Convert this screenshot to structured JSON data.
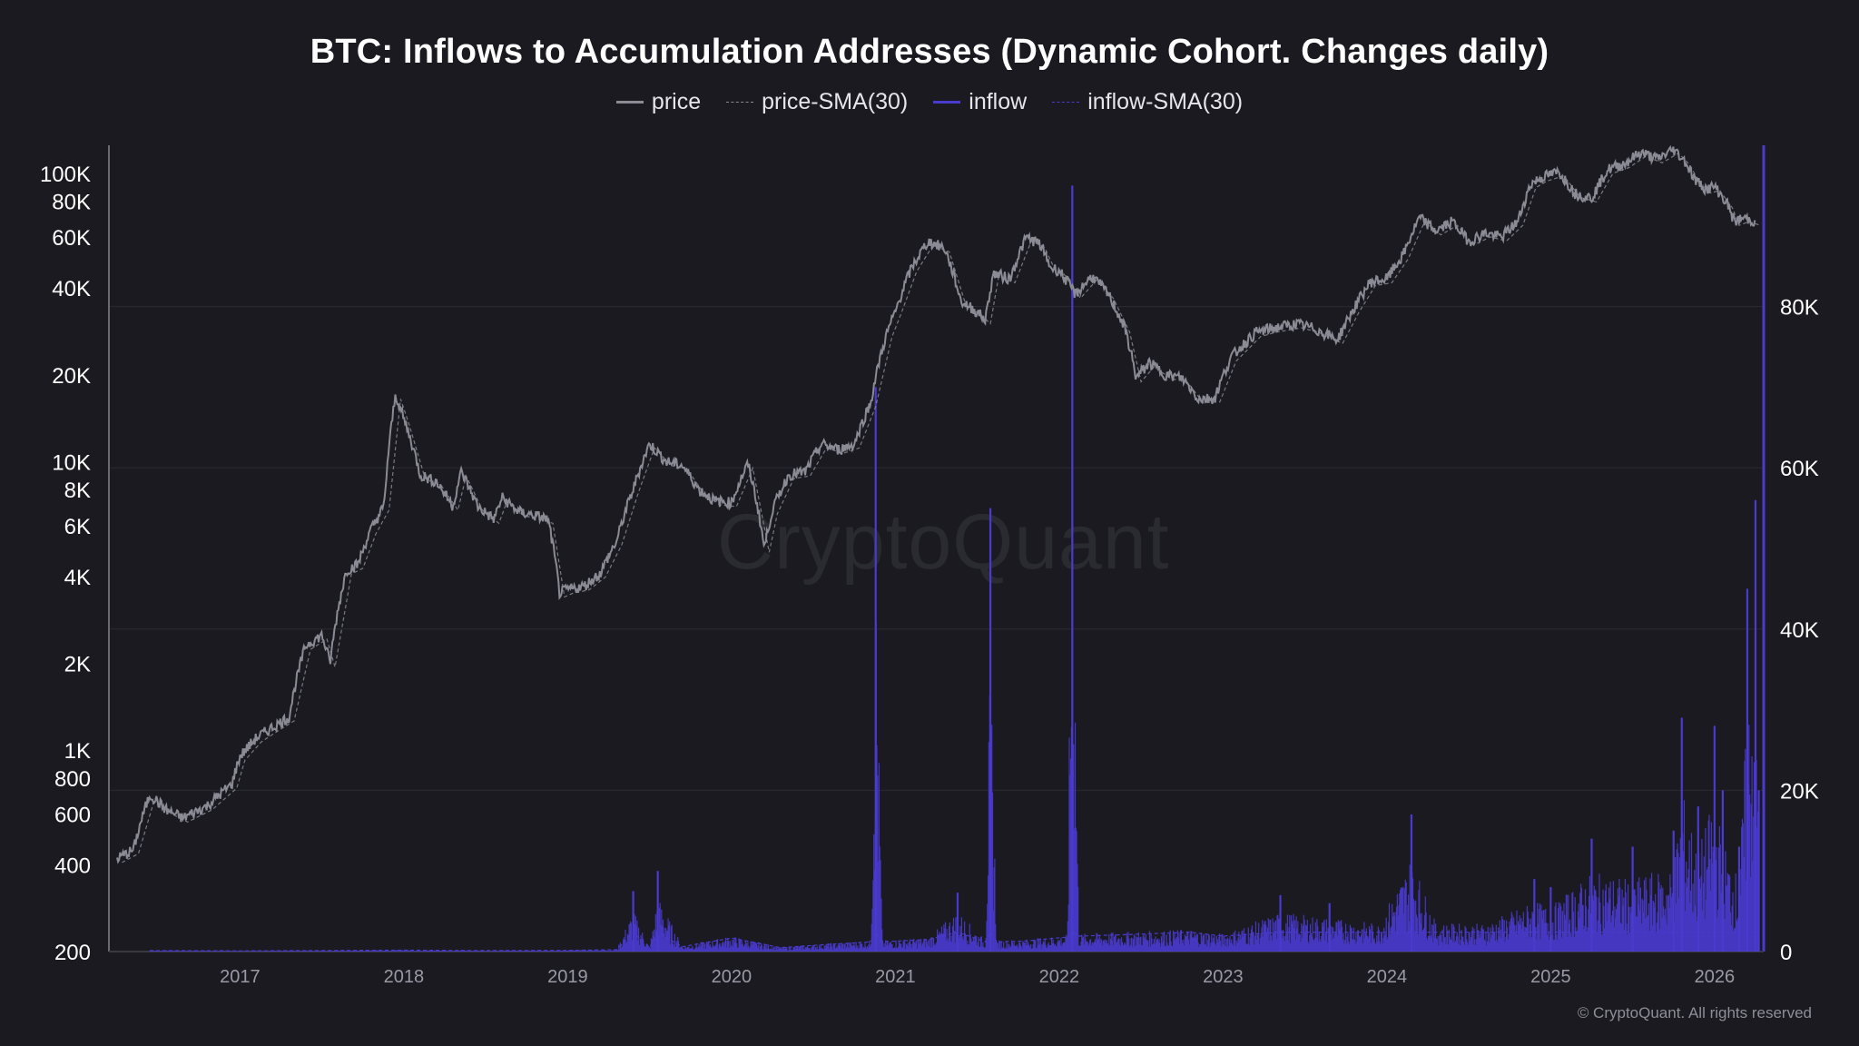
{
  "title": "BTC: Inflows to Accumulation Addresses (Dynamic Cohort. Changes daily)",
  "legend": [
    {
      "label": "price",
      "color": "#8b8b96",
      "dash": false
    },
    {
      "label": "price-SMA(30)",
      "color": "#8b8b96",
      "dash": true
    },
    {
      "label": "inflow",
      "color": "#4a3bd0",
      "dash": false
    },
    {
      "label": "inflow-SMA(30)",
      "color": "#4a3bd0",
      "dash": true
    }
  ],
  "watermark": "CryptoQuant",
  "copyright": "© CryptoQuant. All rights reserved",
  "colors": {
    "background": "#1a1a20",
    "price": "#8b8b96",
    "inflow": "#4a3bd0",
    "grid": "#2b2b33"
  },
  "chart_data": {
    "type": "line",
    "x_ticks": [
      "2017",
      "2018",
      "2019",
      "2020",
      "2021",
      "2022",
      "2023",
      "2024",
      "2025",
      "2026"
    ],
    "x_range": [
      2016.2,
      2026.3
    ],
    "y_left": {
      "scale": "log",
      "range": [
        200,
        125000
      ],
      "ticks": [
        {
          "label": "100K",
          "value": 100000
        },
        {
          "label": "80K",
          "value": 80000
        },
        {
          "label": "60K",
          "value": 60000
        },
        {
          "label": "40K",
          "value": 40000
        },
        {
          "label": "20K",
          "value": 20000
        },
        {
          "label": "10K",
          "value": 10000
        },
        {
          "label": "8K",
          "value": 8000
        },
        {
          "label": "6K",
          "value": 6000
        },
        {
          "label": "4K",
          "value": 4000
        },
        {
          "label": "2K",
          "value": 2000
        },
        {
          "label": "1K",
          "value": 1000
        },
        {
          "label": "800",
          "value": 800
        },
        {
          "label": "600",
          "value": 600
        },
        {
          "label": "400",
          "value": 400
        },
        {
          "label": "200",
          "value": 200
        }
      ]
    },
    "y_right": {
      "scale": "linear",
      "range": [
        0,
        100000
      ],
      "ticks": [
        {
          "label": "80K",
          "value": 80000
        },
        {
          "label": "60K",
          "value": 60000
        },
        {
          "label": "40K",
          "value": 40000
        },
        {
          "label": "20K",
          "value": 20000
        },
        {
          "label": "0",
          "value": 0
        }
      ]
    },
    "grid": true,
    "legend_position": "top-center",
    "series": [
      {
        "name": "price",
        "axis": "left",
        "points": [
          [
            2016.25,
            420
          ],
          [
            2016.35,
            450
          ],
          [
            2016.45,
            700
          ],
          [
            2016.55,
            620
          ],
          [
            2016.65,
            580
          ],
          [
            2016.8,
            640
          ],
          [
            2016.95,
            760
          ],
          [
            2017.0,
            950
          ],
          [
            2017.1,
            1100
          ],
          [
            2017.2,
            1200
          ],
          [
            2017.3,
            1300
          ],
          [
            2017.4,
            2300
          ],
          [
            2017.5,
            2500
          ],
          [
            2017.55,
            2000
          ],
          [
            2017.65,
            4200
          ],
          [
            2017.72,
            4400
          ],
          [
            2017.8,
            5800
          ],
          [
            2017.88,
            7000
          ],
          [
            2017.95,
            17000
          ],
          [
            2018.0,
            14000
          ],
          [
            2018.1,
            9000
          ],
          [
            2018.2,
            8500
          ],
          [
            2018.3,
            7000
          ],
          [
            2018.35,
            9200
          ],
          [
            2018.45,
            7000
          ],
          [
            2018.55,
            6300
          ],
          [
            2018.6,
            7500
          ],
          [
            2018.7,
            6700
          ],
          [
            2018.8,
            6500
          ],
          [
            2018.88,
            6300
          ],
          [
            2018.95,
            3500
          ],
          [
            2019.0,
            3600
          ],
          [
            2019.1,
            3700
          ],
          [
            2019.2,
            4100
          ],
          [
            2019.3,
            5300
          ],
          [
            2019.4,
            8000
          ],
          [
            2019.5,
            11500
          ],
          [
            2019.6,
            10000
          ],
          [
            2019.7,
            9700
          ],
          [
            2019.8,
            8000
          ],
          [
            2019.9,
            7300
          ],
          [
            2020.0,
            7200
          ],
          [
            2020.1,
            9800
          ],
          [
            2020.2,
            5000
          ],
          [
            2020.25,
            6800
          ],
          [
            2020.35,
            9000
          ],
          [
            2020.45,
            9200
          ],
          [
            2020.55,
            11500
          ],
          [
            2020.65,
            11000
          ],
          [
            2020.75,
            11500
          ],
          [
            2020.85,
            16000
          ],
          [
            2020.95,
            28000
          ],
          [
            2021.0,
            33000
          ],
          [
            2021.1,
            47000
          ],
          [
            2021.2,
            58000
          ],
          [
            2021.3,
            55000
          ],
          [
            2021.4,
            36000
          ],
          [
            2021.5,
            33000
          ],
          [
            2021.55,
            31000
          ],
          [
            2021.6,
            45000
          ],
          [
            2021.7,
            43000
          ],
          [
            2021.8,
            60000
          ],
          [
            2021.88,
            57000
          ],
          [
            2021.95,
            47000
          ],
          [
            2022.0,
            46000
          ],
          [
            2022.1,
            38000
          ],
          [
            2022.2,
            44000
          ],
          [
            2022.3,
            38000
          ],
          [
            2022.4,
            29000
          ],
          [
            2022.47,
            19500
          ],
          [
            2022.55,
            22000
          ],
          [
            2022.65,
            20000
          ],
          [
            2022.75,
            19500
          ],
          [
            2022.85,
            16500
          ],
          [
            2022.95,
            16600
          ],
          [
            2023.05,
            23000
          ],
          [
            2023.2,
            28000
          ],
          [
            2023.3,
            29000
          ],
          [
            2023.45,
            30000
          ],
          [
            2023.55,
            29000
          ],
          [
            2023.7,
            26500
          ],
          [
            2023.8,
            34000
          ],
          [
            2023.9,
            42000
          ],
          [
            2024.0,
            43000
          ],
          [
            2024.1,
            52000
          ],
          [
            2024.2,
            70000
          ],
          [
            2024.3,
            63000
          ],
          [
            2024.4,
            68000
          ],
          [
            2024.5,
            58000
          ],
          [
            2024.6,
            62000
          ],
          [
            2024.7,
            60000
          ],
          [
            2024.8,
            68000
          ],
          [
            2024.88,
            92000
          ],
          [
            2024.95,
            97000
          ],
          [
            2025.05,
            101000
          ],
          [
            2025.15,
            85000
          ],
          [
            2025.25,
            82000
          ],
          [
            2025.35,
            103000
          ],
          [
            2025.45,
            108000
          ],
          [
            2025.55,
            118000
          ],
          [
            2025.65,
            112000
          ],
          [
            2025.75,
            121000
          ],
          [
            2025.82,
            110000
          ],
          [
            2025.88,
            95000
          ],
          [
            2025.95,
            88000
          ],
          [
            2026.0,
            90000
          ],
          [
            2026.08,
            78000
          ],
          [
            2026.12,
            68000
          ],
          [
            2026.18,
            70000
          ],
          [
            2026.25,
            68000
          ]
        ]
      },
      {
        "name": "inflow",
        "axis": "right",
        "points": [
          [
            2016.45,
            200
          ],
          [
            2017.0,
            150
          ],
          [
            2017.5,
            200
          ],
          [
            2018.0,
            300
          ],
          [
            2018.5,
            200
          ],
          [
            2019.0,
            250
          ],
          [
            2019.3,
            400
          ],
          [
            2019.4,
            7500
          ],
          [
            2019.5,
            800
          ],
          [
            2019.55,
            10000
          ],
          [
            2019.7,
            1000
          ],
          [
            2020.0,
            2800
          ],
          [
            2020.3,
            800
          ],
          [
            2020.6,
            1500
          ],
          [
            2020.85,
            2000
          ],
          [
            2020.88,
            70000
          ],
          [
            2020.92,
            2000
          ],
          [
            2021.2,
            2500
          ],
          [
            2021.38,
            7300
          ],
          [
            2021.55,
            2000
          ],
          [
            2021.58,
            55000
          ],
          [
            2021.62,
            2000
          ],
          [
            2021.8,
            2200
          ],
          [
            2022.05,
            3000
          ],
          [
            2022.08,
            95000
          ],
          [
            2022.12,
            3200
          ],
          [
            2022.4,
            3500
          ],
          [
            2022.8,
            4000
          ],
          [
            2023.0,
            3200
          ],
          [
            2023.35,
            7000
          ],
          [
            2023.65,
            6000
          ],
          [
            2023.95,
            5000
          ],
          [
            2024.15,
            17000
          ],
          [
            2024.3,
            5000
          ],
          [
            2024.6,
            5000
          ],
          [
            2024.9,
            9000
          ],
          [
            2025.0,
            8000
          ],
          [
            2025.25,
            14000
          ],
          [
            2025.5,
            13000
          ],
          [
            2025.75,
            15000
          ],
          [
            2025.8,
            29000
          ],
          [
            2025.9,
            18000
          ],
          [
            2026.0,
            28000
          ],
          [
            2026.05,
            20000
          ],
          [
            2026.15,
            13000
          ],
          [
            2026.2,
            45000
          ],
          [
            2026.25,
            56000
          ],
          [
            2026.27,
            20000
          ]
        ]
      }
    ]
  }
}
